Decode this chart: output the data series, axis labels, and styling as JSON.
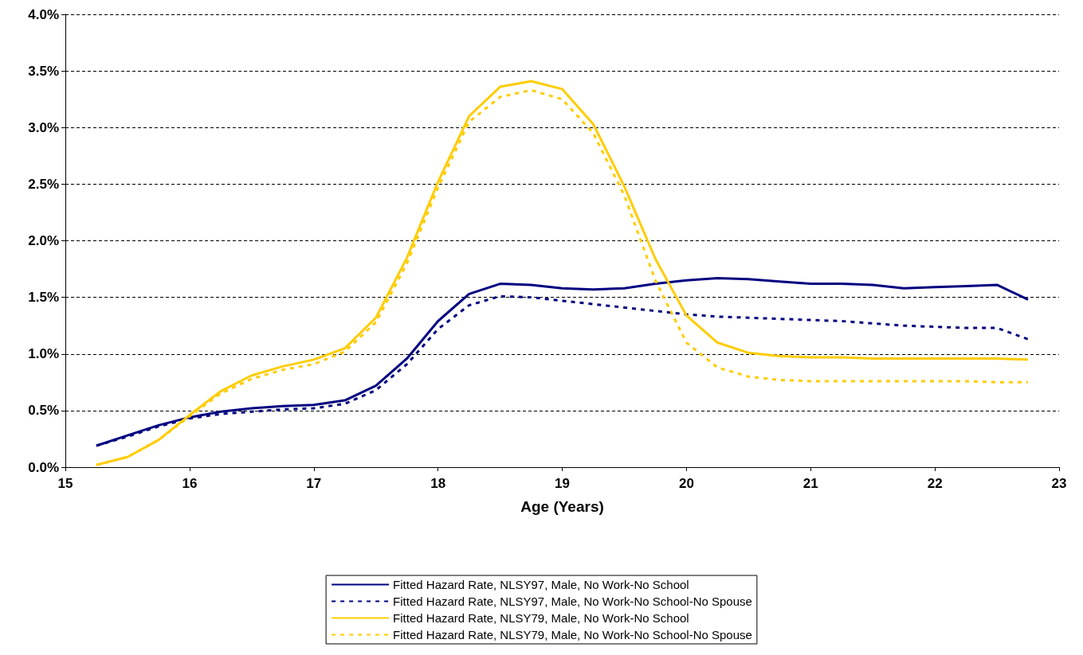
{
  "chart_data": {
    "type": "line",
    "xlabel": "Age (Years)",
    "x": [
      15.25,
      15.5,
      15.75,
      16,
      16.25,
      16.5,
      16.75,
      17,
      17.25,
      17.5,
      17.75,
      18,
      18.25,
      18.5,
      18.75,
      19,
      19.25,
      19.5,
      19.75,
      20,
      20.25,
      20.5,
      20.75,
      21,
      21.25,
      21.5,
      21.75,
      22,
      22.25,
      22.5,
      22.75
    ],
    "xlim": [
      15,
      23
    ],
    "xticks": [
      15,
      16,
      17,
      18,
      19,
      20,
      21,
      22,
      23
    ],
    "ylim": [
      0,
      4
    ],
    "yticks": [
      {
        "value": 0,
        "label": "0.0%"
      },
      {
        "value": 0.5,
        "label": "0.5%"
      },
      {
        "value": 1,
        "label": "1.0%"
      },
      {
        "value": 1.5,
        "label": "1.5%"
      },
      {
        "value": 2,
        "label": "2.0%"
      },
      {
        "value": 2.5,
        "label": "2.5%"
      },
      {
        "value": 3,
        "label": "3.0%"
      },
      {
        "value": 3.5,
        "label": "3.5%"
      },
      {
        "value": 4,
        "label": "4.0%"
      }
    ],
    "grid": "y",
    "legend": "bottom",
    "marker": "none",
    "series": [
      {
        "name": "Fitted Hazard Rate, NLSY97, Male, No Work-No School",
        "color": "#000080",
        "line_style": "solid",
        "values": [
          0.19,
          0.28,
          0.37,
          0.44,
          0.49,
          0.52,
          0.54,
          0.55,
          0.59,
          0.72,
          0.96,
          1.29,
          1.53,
          1.62,
          1.61,
          1.58,
          1.57,
          1.58,
          1.62,
          1.65,
          1.67,
          1.66,
          1.64,
          1.62,
          1.62,
          1.61,
          1.58,
          1.59,
          1.6,
          1.61,
          1.48
        ]
      },
      {
        "name": "Fitted Hazard Rate, NLSY97, Male, No Work-No School-No Spouse",
        "color": "#000080",
        "line_style": "dashed",
        "values": [
          0.19,
          0.27,
          0.36,
          0.43,
          0.47,
          0.49,
          0.51,
          0.52,
          0.56,
          0.68,
          0.91,
          1.22,
          1.43,
          1.51,
          1.5,
          1.47,
          1.44,
          1.41,
          1.38,
          1.35,
          1.33,
          1.32,
          1.31,
          1.3,
          1.29,
          1.27,
          1.25,
          1.24,
          1.23,
          1.23,
          1.13
        ]
      },
      {
        "name": "Fitted Hazard Rate, NLSY79, Male, No Work-No School",
        "color": "#ffcc00",
        "line_style": "solid",
        "values": [
          0.02,
          0.09,
          0.24,
          0.46,
          0.67,
          0.81,
          0.89,
          0.95,
          1.05,
          1.32,
          1.85,
          2.52,
          3.1,
          3.36,
          3.41,
          3.34,
          3.03,
          2.48,
          1.84,
          1.34,
          1.1,
          1.01,
          0.98,
          0.97,
          0.97,
          0.96,
          0.96,
          0.96,
          0.96,
          0.96,
          0.95
        ]
      },
      {
        "name": "Fitted Hazard Rate, NLSY79, Male, No Work-No School-No Spouse",
        "color": "#ffcc00",
        "line_style": "dashed",
        "values": [
          0.02,
          0.09,
          0.24,
          0.45,
          0.65,
          0.78,
          0.86,
          0.91,
          1.02,
          1.28,
          1.8,
          2.47,
          3.05,
          3.27,
          3.33,
          3.25,
          2.95,
          2.4,
          1.65,
          1.1,
          0.88,
          0.8,
          0.77,
          0.76,
          0.76,
          0.76,
          0.76,
          0.76,
          0.76,
          0.75,
          0.75
        ]
      }
    ]
  }
}
